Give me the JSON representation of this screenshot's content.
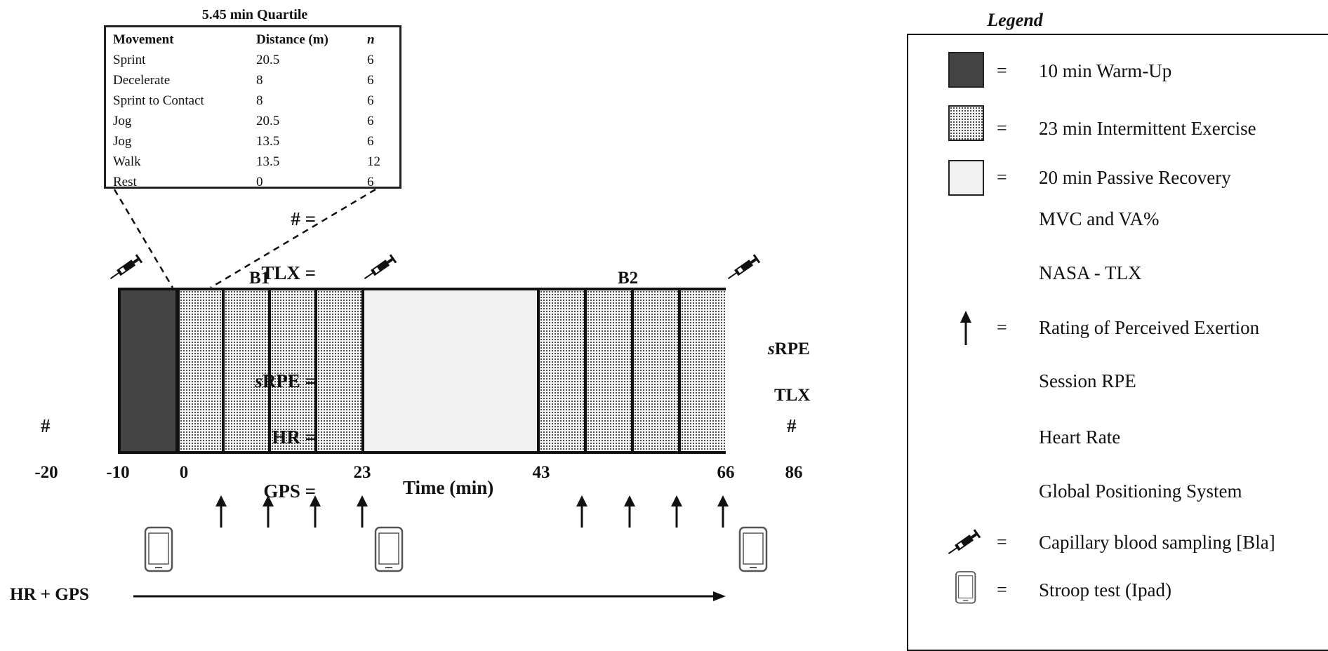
{
  "quartile": {
    "title": "5.45 min Quartile",
    "headers": [
      "Movement",
      "Distance (m)",
      "n"
    ],
    "rows": [
      [
        "Sprint",
        "20.5",
        "6"
      ],
      [
        "Decelerate",
        "8",
        "6"
      ],
      [
        "Sprint to Contact",
        "8",
        "6"
      ],
      [
        "Jog",
        "20.5",
        "6"
      ],
      [
        "Jog",
        "13.5",
        "6"
      ],
      [
        "Walk",
        "13.5",
        "12"
      ],
      [
        "Rest",
        "0",
        "6"
      ]
    ]
  },
  "timeline": {
    "block1": "B1",
    "block2": "B2",
    "time_label": "Time (min)",
    "ticks": [
      "-20",
      "-10",
      "0",
      "23",
      "43",
      "66",
      "86"
    ],
    "hash_left": "#",
    "hash_right": "#",
    "srpe_prefix": "s",
    "srpe_rest": "RPE",
    "tlx": "TLX",
    "hr_gps": "HR + GPS"
  },
  "legend": {
    "title": "Legend",
    "items": [
      {
        "symbol": "",
        "eq": "=",
        "text": "10 min Warm-Up"
      },
      {
        "symbol": "",
        "eq": "=",
        "text": "23 min Intermittent Exercise"
      },
      {
        "symbol": "",
        "eq": "=",
        "text": "20 min Passive Recovery"
      },
      {
        "symbol": "# =",
        "eq": "",
        "text": "MVC and VA%"
      },
      {
        "symbol": "TLX =",
        "eq": "",
        "text": "NASA - TLX"
      },
      {
        "symbol": "",
        "eq": "=",
        "text": "Rating of Perceived Exertion"
      },
      {
        "symbol": "RPE =",
        "symbol_prefix": "s",
        "eq": "",
        "text": "Session RPE"
      },
      {
        "symbol": "HR =",
        "eq": "",
        "text": "Heart Rate"
      },
      {
        "symbol": "GPS =",
        "eq": "",
        "text": "Global Positioning System"
      },
      {
        "symbol": "",
        "eq": "=",
        "text": "Capillary blood sampling [Bla]"
      },
      {
        "symbol": "",
        "eq": "=",
        "text": "Stroop test (Ipad)"
      }
    ]
  },
  "colors": {
    "warmup": "#444444",
    "recovery": "#f1f1f1",
    "line": "#111111"
  },
  "icons": [
    "syringe-icon",
    "up-arrow-icon",
    "tablet-icon"
  ]
}
